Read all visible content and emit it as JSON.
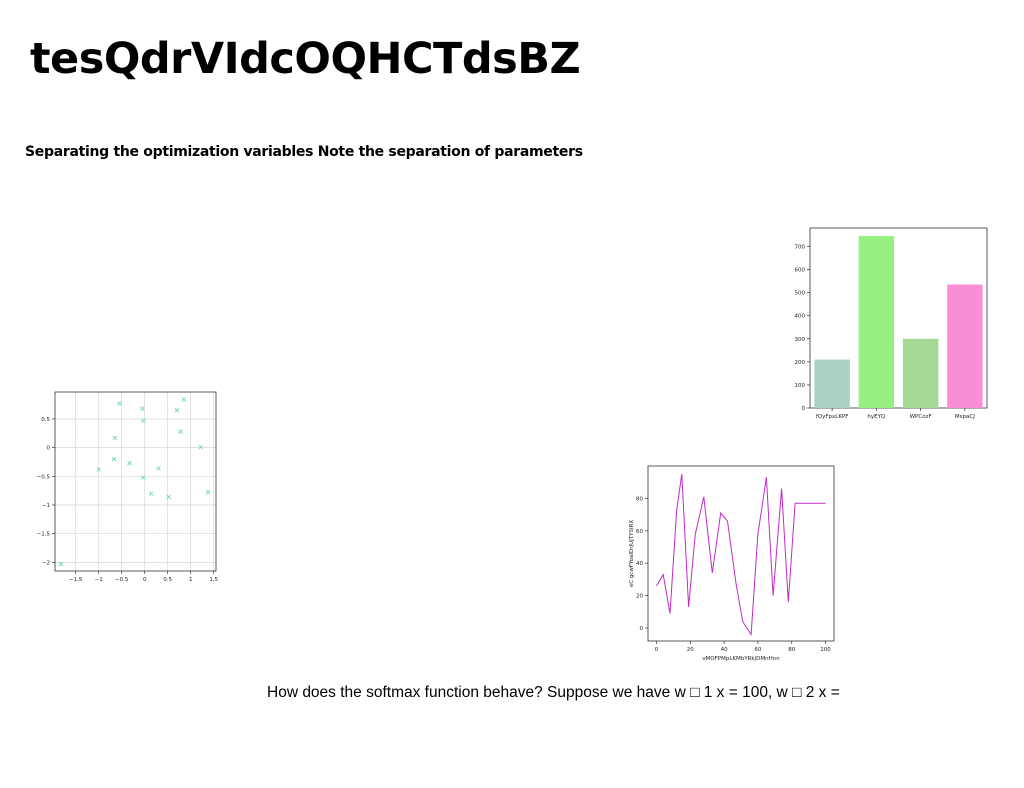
{
  "document": {
    "title": "tesQdrVIdcOQHCTdsBZ",
    "subtitle": "Separating the optimization variables Note the separation of parameters",
    "paragraph": "How does the softmax function behave? Suppose we have w □ 1 x = 100, w □ 2 x ="
  },
  "chart_data": [
    {
      "type": "bar",
      "categories": [
        "fQyFpxLKPF",
        "hyEYQ",
        "WPCozF",
        "MspaCJ"
      ],
      "values": [
        210,
        745,
        300,
        535
      ],
      "colors": [
        "#aad1c2",
        "#98ef82",
        "#a6d895",
        "#f98dd6"
      ],
      "ylim": [
        0,
        780
      ],
      "yticks": [
        0,
        100,
        200,
        300,
        400,
        500,
        600,
        700
      ],
      "xlabel": "",
      "ylabel": "",
      "title": "",
      "grid": false
    },
    {
      "type": "scatter",
      "marker": "x",
      "color": "#7fd8c6",
      "x": [
        -1.82,
        -0.55,
        -0.05,
        0.85,
        -0.65,
        0.7,
        -0.03,
        0.78,
        -1.0,
        -0.67,
        -0.33,
        1.22,
        0.3,
        -0.03,
        0.14,
        0.52,
        1.38
      ],
      "y": [
        -2.03,
        0.77,
        0.68,
        0.84,
        0.17,
        0.65,
        0.47,
        0.28,
        -0.38,
        -0.2,
        -0.27,
        0.01,
        -0.36,
        -0.52,
        -0.8,
        -0.86,
        -0.78
      ],
      "xlim": [
        -1.95,
        1.55
      ],
      "ylim": [
        -2.15,
        0.97
      ],
      "xticks": [
        -1.5,
        -1.0,
        -0.5,
        0.0,
        0.5,
        1.0,
        1.5
      ],
      "yticks": [
        -2.0,
        -1.5,
        -1.0,
        -0.5,
        0.0,
        0.5
      ],
      "xlabel": "",
      "ylabel": "",
      "title": "",
      "grid": true
    },
    {
      "type": "line",
      "color": "#c02ac8",
      "x": [
        0,
        4,
        8,
        12,
        15,
        19,
        23,
        28,
        33,
        38,
        42,
        47,
        51,
        56,
        60,
        65,
        69,
        74,
        78,
        82,
        85,
        89,
        93,
        97,
        100
      ],
      "y": [
        26,
        33,
        9,
        73,
        95,
        13,
        58,
        81,
        34,
        71,
        66,
        28,
        4,
        -4,
        58,
        93,
        20,
        86,
        16,
        77,
        77,
        77,
        77,
        77,
        77
      ],
      "xlim": [
        -5,
        105
      ],
      "ylim": [
        -8,
        100
      ],
      "xticks": [
        0,
        20,
        40,
        60,
        80,
        100
      ],
      "yticks": [
        0,
        20,
        40,
        60,
        80
      ],
      "xlabel": "vMOFPMpLKMbYRkjDMnHnn",
      "ylabel": "eC gcwFYoaIDrJUJTYSIRX",
      "title": "",
      "grid": false
    }
  ]
}
